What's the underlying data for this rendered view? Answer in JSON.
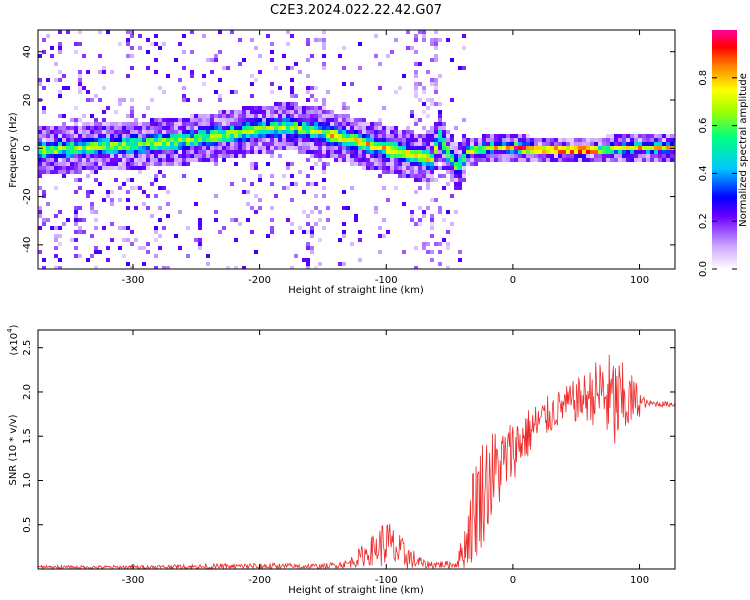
{
  "title": "C2E3.2024.022.22.42.G07",
  "chart_data": [
    {
      "type": "heatmap",
      "xlabel": "Height of straight line (km)",
      "ylabel": "Frequency (Hz)",
      "xlim": [
        -375,
        128
      ],
      "ylim": [
        -50,
        49
      ],
      "xticks": [
        -300,
        -200,
        -100,
        0,
        100
      ],
      "yticks": [
        -40,
        -20,
        0,
        20,
        40
      ],
      "colorbar": {
        "label": "Normalized spectral amplitude",
        "range": [
          0,
          1
        ],
        "ticks": [
          0.0,
          0.2,
          0.4,
          0.6,
          0.8
        ],
        "palette": [
          "#ffffff",
          "#c9a0ff",
          "#6a00ff",
          "#0000ff",
          "#00c8ff",
          "#00ff80",
          "#a0ff00",
          "#ffff00",
          "#ff8000",
          "#ff0000",
          "#ff00a0"
        ]
      },
      "ridge": {
        "points": [
          {
            "x": -375,
            "y": 0
          },
          {
            "x": -340,
            "y": 1
          },
          {
            "x": -300,
            "y": 2
          },
          {
            "x": -260,
            "y": 4
          },
          {
            "x": -220,
            "y": 7
          },
          {
            "x": -180,
            "y": 10
          },
          {
            "x": -150,
            "y": 7
          },
          {
            "x": -120,
            "y": 3
          },
          {
            "x": -90,
            "y": -1
          },
          {
            "x": -65,
            "y": -4
          },
          {
            "x": -60,
            "y": 6
          },
          {
            "x": -45,
            "y": -8
          },
          {
            "x": -38,
            "y": -1
          },
          {
            "x": -20,
            "y": 1
          },
          {
            "x": 0,
            "y": 1
          },
          {
            "x": 20,
            "y": 0
          },
          {
            "x": 60,
            "y": 0
          },
          {
            "x": 90,
            "y": 1
          },
          {
            "x": 128,
            "y": 1
          }
        ],
        "peak_amplitude": 0.9
      }
    },
    {
      "type": "line",
      "xlabel": "Height of straight line (km)",
      "ylabel": "SNR (10 * v/v)",
      "yscale_label": "(x10",
      "yscale_exponent": "4",
      "xlim": [
        -375,
        128
      ],
      "ylim": [
        0,
        2.7
      ],
      "xticks": [
        -300,
        -200,
        -100,
        0,
        100
      ],
      "yticks": [
        0.5,
        1.0,
        1.5,
        2.0,
        2.5
      ],
      "ytick_labels": [
        "0.5",
        "1.0",
        "1.5",
        "2.0",
        "2.5"
      ],
      "series": [
        {
          "color": "#ee2a2a",
          "envelope": [
            {
              "x": -375,
              "mean": 0.02,
              "spread": 0.02
            },
            {
              "x": -300,
              "mean": 0.02,
              "spread": 0.02
            },
            {
              "x": -200,
              "mean": 0.03,
              "spread": 0.04
            },
            {
              "x": -150,
              "mean": 0.03,
              "spread": 0.03
            },
            {
              "x": -130,
              "mean": 0.06,
              "spread": 0.05
            },
            {
              "x": -110,
              "mean": 0.22,
              "spread": 0.18
            },
            {
              "x": -100,
              "mean": 0.3,
              "spread": 0.3
            },
            {
              "x": -90,
              "mean": 0.18,
              "spread": 0.22
            },
            {
              "x": -70,
              "mean": 0.05,
              "spread": 0.05
            },
            {
              "x": -45,
              "mean": 0.05,
              "spread": 0.04
            },
            {
              "x": -38,
              "mean": 0.25,
              "spread": 0.25
            },
            {
              "x": -30,
              "mean": 0.7,
              "spread": 0.65
            },
            {
              "x": -20,
              "mean": 1.0,
              "spread": 0.6
            },
            {
              "x": -10,
              "mean": 1.15,
              "spread": 0.45
            },
            {
              "x": 0,
              "mean": 1.35,
              "spread": 0.35
            },
            {
              "x": 20,
              "mean": 1.65,
              "spread": 0.25
            },
            {
              "x": 40,
              "mean": 1.85,
              "spread": 0.2
            },
            {
              "x": 60,
              "mean": 1.95,
              "spread": 0.3
            },
            {
              "x": 70,
              "mean": 2.0,
              "spread": 0.45
            },
            {
              "x": 80,
              "mean": 1.85,
              "spread": 0.6
            },
            {
              "x": 95,
              "mean": 1.9,
              "spread": 0.3
            },
            {
              "x": 105,
              "mean": 1.87,
              "spread": 0.04
            },
            {
              "x": 128,
              "mean": 1.86,
              "spread": 0.03
            }
          ]
        }
      ]
    }
  ]
}
